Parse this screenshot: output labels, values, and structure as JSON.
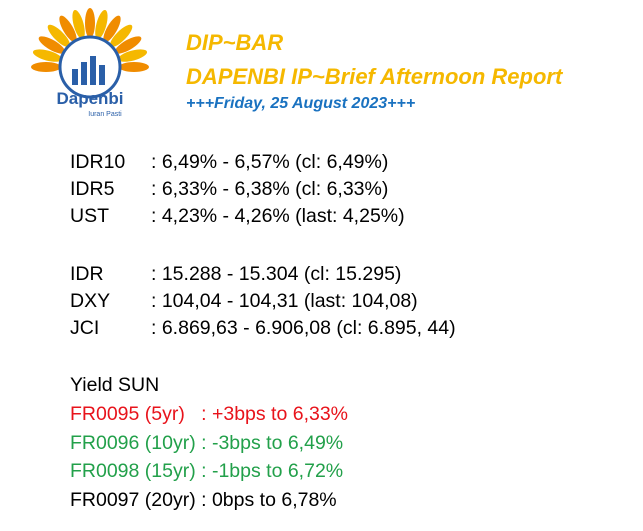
{
  "header": {
    "logo": {
      "name": "Dapenbi",
      "tagline": "Iuran Pasti"
    },
    "title": "DIP~BAR",
    "subtitle": "DAPENBI IP~Brief Afternoon Report",
    "date": "+++Friday, 25 August 2023+++"
  },
  "sections": [
    {
      "rows": [
        {
          "label": "IDR10",
          "value": ": 6,49% - 6,57% (cl: 6,49%)"
        },
        {
          "label": "IDR5",
          "value": ": 6,33% - 6,38% (cl: 6,33%)"
        },
        {
          "label": "UST",
          "value": ": 4,23% - 4,26% (last: 4,25%)"
        }
      ]
    },
    {
      "rows": [
        {
          "label": "IDR",
          "value": ": 15.288 - 15.304 (cl: 15.295)"
        },
        {
          "label": "DXY",
          "value": ": 104,04 - 104,31 (last: 104,08)"
        },
        {
          "label": "JCI",
          "value": ": 6.869,63 - 6.906,08 (cl: 6.895, 44)"
        }
      ]
    },
    {
      "heading": "Yield SUN",
      "lines": [
        {
          "text": "FR0095 (5yr)   : +3bps to 6,33%",
          "color": "#e8131b"
        },
        {
          "text": "FR0096 (10yr) : -3bps to 6,49%",
          "color": "#22a04a"
        },
        {
          "text": "FR0098 (15yr) : -1bps to 6,72%",
          "color": "#22a04a"
        },
        {
          "text": "FR0097 (20yr) : 0bps to 6,78%",
          "color": "#000000"
        }
      ]
    }
  ]
}
